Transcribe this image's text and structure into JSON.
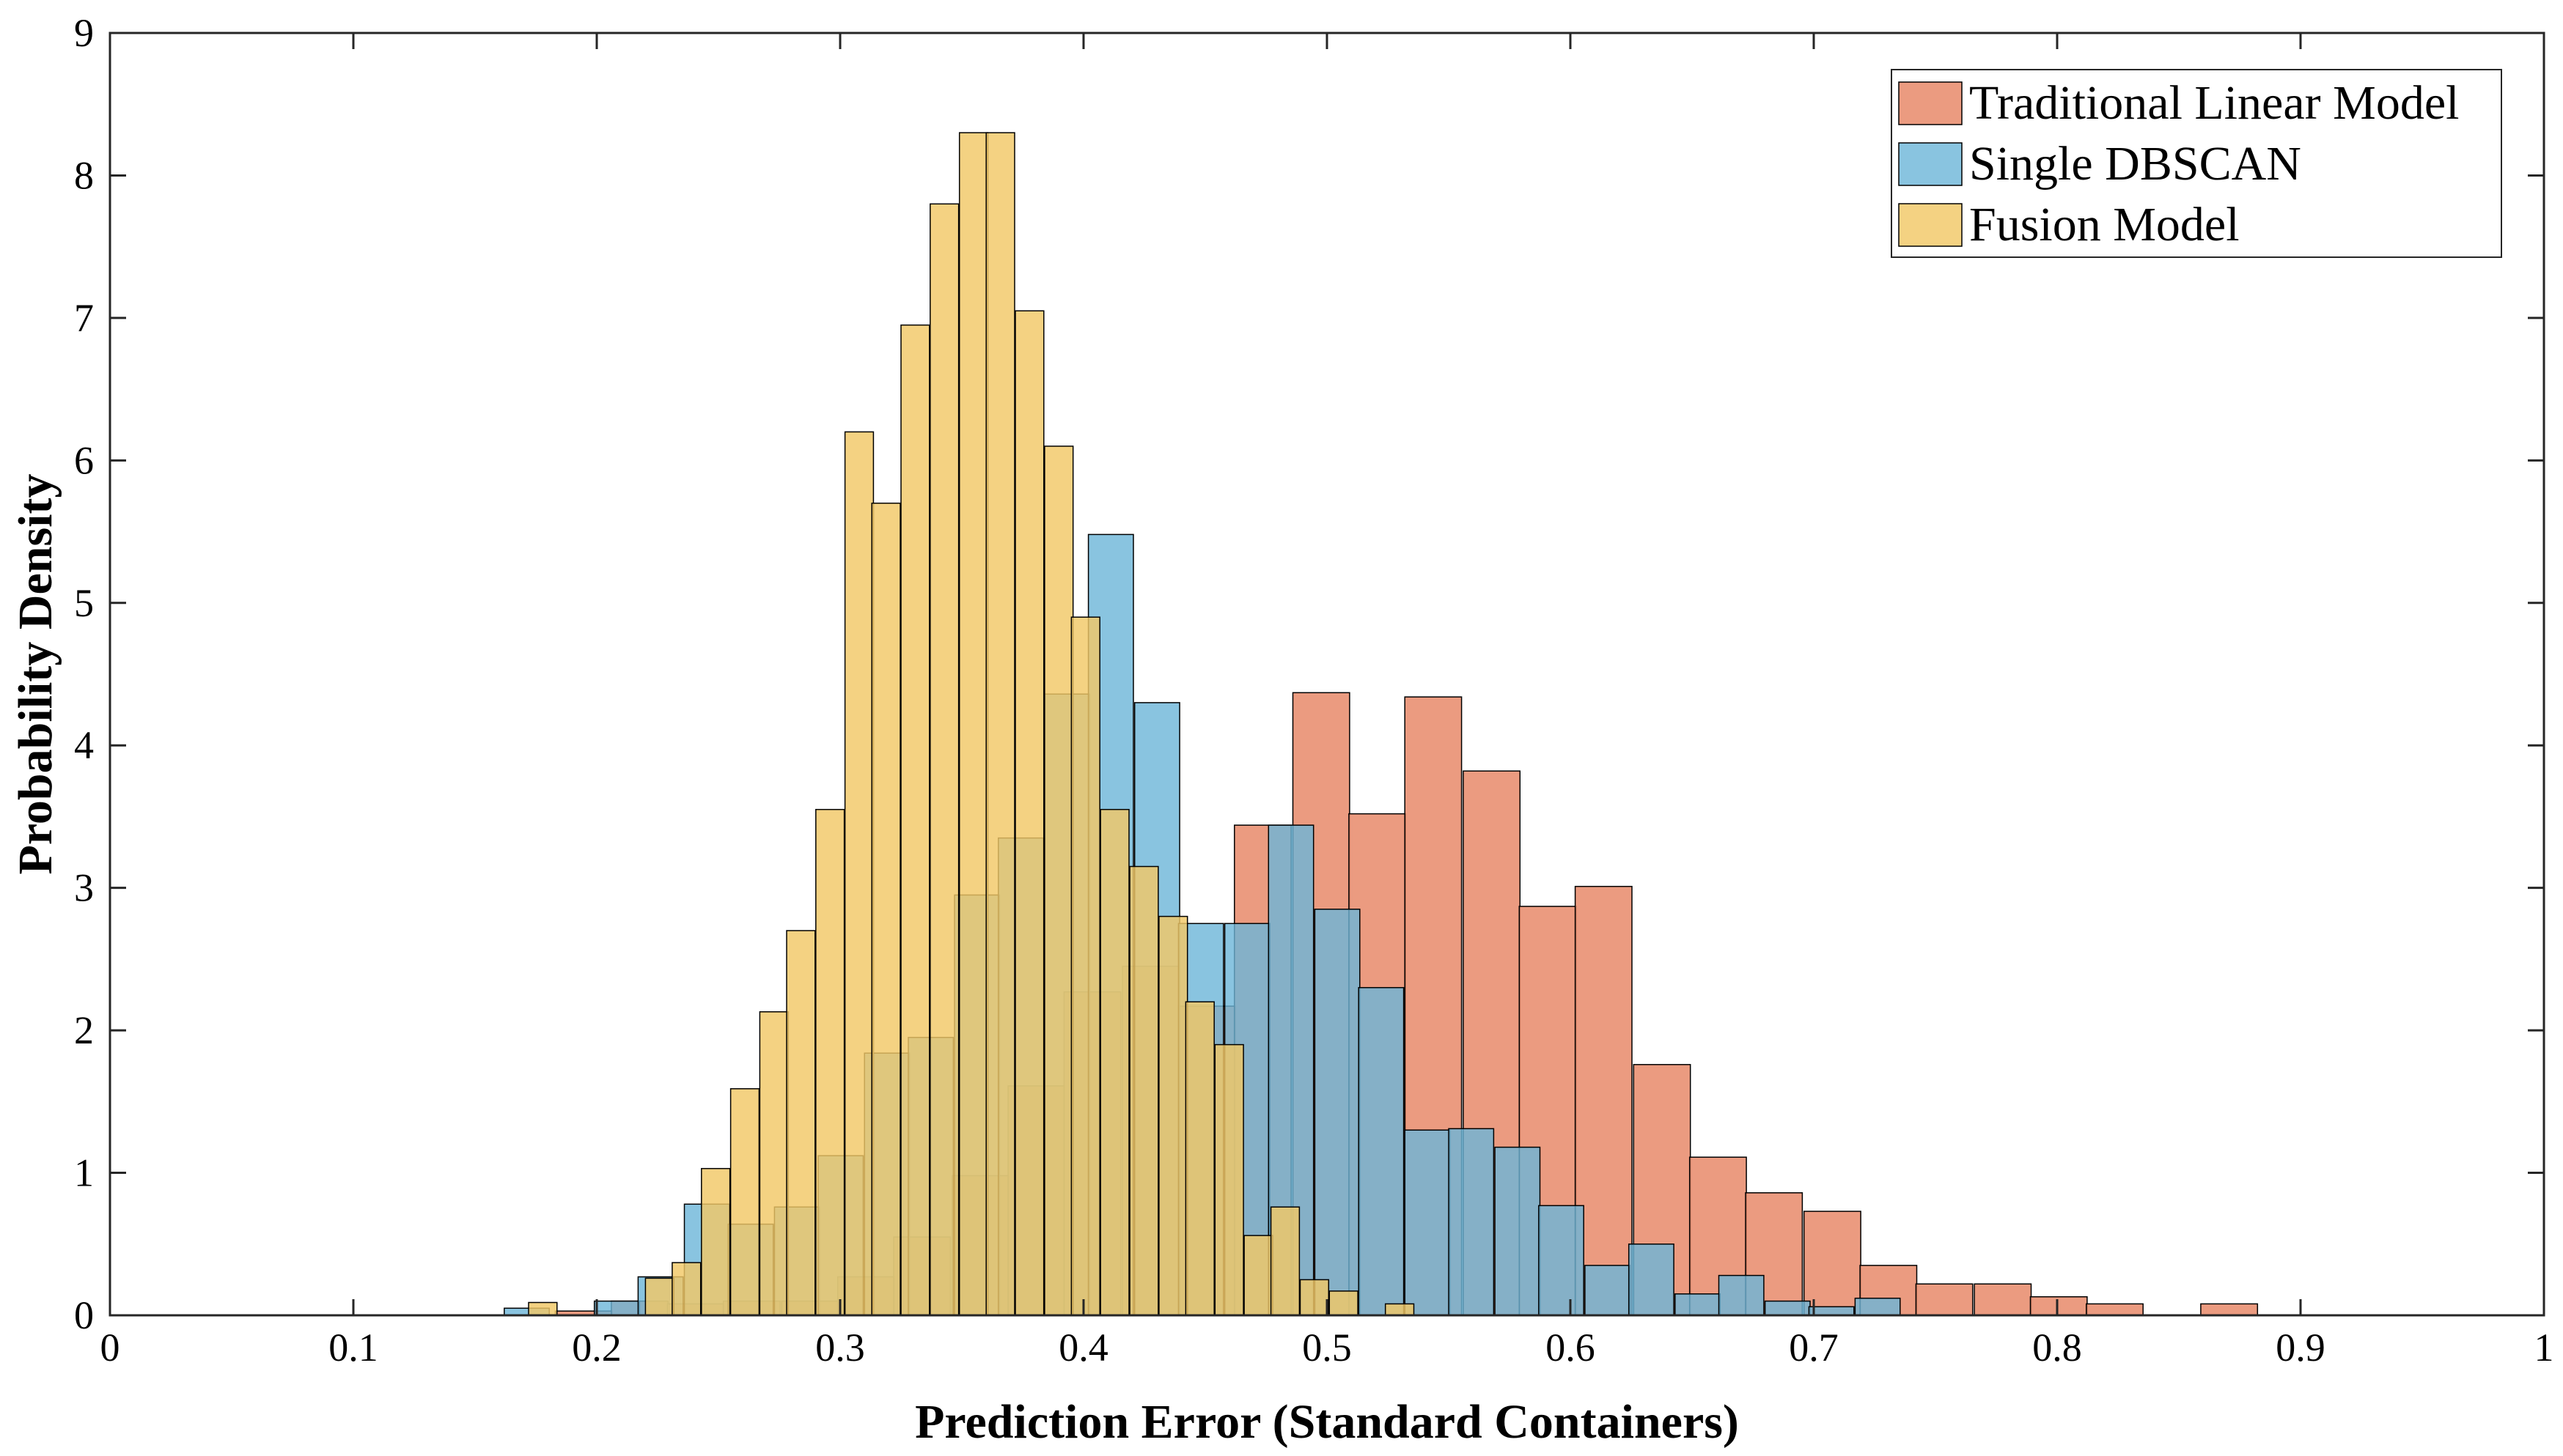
{
  "chart_data": {
    "type": "histogram",
    "title": "",
    "xlabel": "Prediction Error (Standard Containers)",
    "ylabel": "Probability Density",
    "xlim": [
      0,
      1
    ],
    "ylim": [
      0,
      9
    ],
    "xticks": [
      0,
      0.1,
      0.2,
      0.3,
      0.4,
      0.5,
      0.6,
      0.7,
      0.8,
      0.9,
      1
    ],
    "xtick_labels": [
      "0",
      "0.1",
      "0.2",
      "0.3",
      "0.4",
      "0.5",
      "0.6",
      "0.7",
      "0.8",
      "0.9",
      "1"
    ],
    "yticks": [
      0,
      1,
      2,
      3,
      4,
      5,
      6,
      7,
      8,
      9
    ],
    "ytick_labels": [
      "0",
      "1",
      "2",
      "3",
      "4",
      "5",
      "6",
      "7",
      "8",
      "9"
    ],
    "grid": false,
    "legend_position": "top-right",
    "series": [
      {
        "name": "Traditional Linear Model",
        "color": "#E8896A",
        "opacity": 0.85,
        "bin_width": 0.0233,
        "bins": [
          [
            0.183,
            0.03
          ],
          [
            0.206,
            0.1
          ],
          [
            0.229,
            0.08
          ],
          [
            0.252,
            0.1
          ],
          [
            0.276,
            0.1
          ],
          [
            0.299,
            0.27
          ],
          [
            0.322,
            0.55
          ],
          [
            0.346,
            0.98
          ],
          [
            0.369,
            1.61
          ],
          [
            0.392,
            2.27
          ],
          [
            0.416,
            2.45
          ],
          [
            0.439,
            2.17
          ],
          [
            0.462,
            3.44
          ],
          [
            0.486,
            4.37
          ],
          [
            0.509,
            3.52
          ],
          [
            0.532,
            4.34
          ],
          [
            0.556,
            3.82
          ],
          [
            0.579,
            2.87
          ],
          [
            0.602,
            3.01
          ],
          [
            0.626,
            1.76
          ],
          [
            0.649,
            1.11
          ],
          [
            0.672,
            0.86
          ],
          [
            0.696,
            0.73
          ],
          [
            0.719,
            0.35
          ],
          [
            0.742,
            0.22
          ],
          [
            0.766,
            0.22
          ],
          [
            0.789,
            0.13
          ],
          [
            0.812,
            0.08
          ],
          [
            0.859,
            0.08
          ]
        ]
      },
      {
        "name": "Single DBSCAN",
        "color": "#6BB5D8",
        "opacity": 0.8,
        "bin_width": 0.0185,
        "bins": [
          [
            0.162,
            0.05
          ],
          [
            0.199,
            0.1
          ],
          [
            0.217,
            0.27
          ],
          [
            0.236,
            0.78
          ],
          [
            0.254,
            0.64
          ],
          [
            0.273,
            0.76
          ],
          [
            0.291,
            1.12
          ],
          [
            0.31,
            1.84
          ],
          [
            0.328,
            1.95
          ],
          [
            0.347,
            2.95
          ],
          [
            0.365,
            3.35
          ],
          [
            0.384,
            4.36
          ],
          [
            0.402,
            5.48
          ],
          [
            0.421,
            4.3
          ],
          [
            0.439,
            2.75
          ],
          [
            0.458,
            2.75
          ],
          [
            0.476,
            3.44
          ],
          [
            0.495,
            2.85
          ],
          [
            0.513,
            2.3
          ],
          [
            0.532,
            1.3
          ],
          [
            0.55,
            1.31
          ],
          [
            0.569,
            1.18
          ],
          [
            0.587,
            0.77
          ],
          [
            0.606,
            0.35
          ],
          [
            0.624,
            0.5
          ],
          [
            0.643,
            0.15
          ],
          [
            0.661,
            0.28
          ],
          [
            0.68,
            0.1
          ],
          [
            0.698,
            0.06
          ],
          [
            0.717,
            0.12
          ]
        ]
      },
      {
        "name": "Fusion Model",
        "color": "#F2C867",
        "opacity": 0.82,
        "bin_width": 0.0117,
        "bins": [
          [
            0.172,
            0.09
          ],
          [
            0.22,
            0.26
          ],
          [
            0.231,
            0.37
          ],
          [
            0.243,
            1.03
          ],
          [
            0.255,
            1.59
          ],
          [
            0.267,
            2.13
          ],
          [
            0.278,
            2.7
          ],
          [
            0.29,
            3.55
          ],
          [
            0.302,
            6.2
          ],
          [
            0.313,
            5.7
          ],
          [
            0.325,
            6.95
          ],
          [
            0.337,
            7.8
          ],
          [
            0.349,
            8.3
          ],
          [
            0.36,
            8.3
          ],
          [
            0.372,
            7.05
          ],
          [
            0.384,
            6.1
          ],
          [
            0.395,
            4.9
          ],
          [
            0.407,
            3.55
          ],
          [
            0.419,
            3.15
          ],
          [
            0.431,
            2.8
          ],
          [
            0.442,
            2.2
          ],
          [
            0.454,
            1.9
          ],
          [
            0.466,
            0.56
          ],
          [
            0.477,
            0.76
          ],
          [
            0.489,
            0.25
          ],
          [
            0.501,
            0.17
          ],
          [
            0.524,
            0.08
          ]
        ]
      }
    ]
  }
}
